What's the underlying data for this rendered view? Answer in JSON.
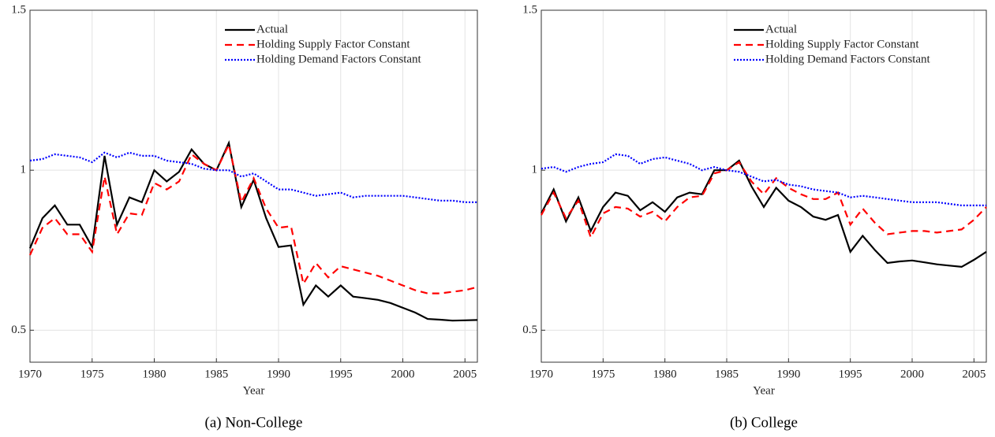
{
  "chart_data": [
    {
      "type": "line",
      "caption": "(a) Non-College",
      "x_label": "Year",
      "x": [
        1970,
        1971,
        1972,
        1973,
        1974,
        1975,
        1976,
        1977,
        1978,
        1979,
        1980,
        1981,
        1982,
        1983,
        1984,
        1985,
        1986,
        1987,
        1988,
        1989,
        1990,
        1991,
        1992,
        1993,
        1994,
        1995,
        1996,
        1997,
        1998,
        1999,
        2000,
        2001,
        2002,
        2003,
        2004,
        2005,
        2006
      ],
      "xlim": [
        1970,
        2006
      ],
      "xticks": [
        1970,
        1975,
        1980,
        1985,
        1990,
        1995,
        2000,
        2005
      ],
      "ylim": [
        0.4,
        1.5
      ],
      "yticks": [
        0.5,
        1,
        1.5
      ],
      "grid": true,
      "legend": "top-right",
      "series": [
        {
          "name": "Actual",
          "color": "#000000",
          "dash": "solid",
          "values": [
            0.756,
            0.85,
            0.89,
            0.83,
            0.83,
            0.76,
            1.045,
            0.83,
            0.915,
            0.9,
            1.0,
            0.965,
            0.995,
            1.065,
            1.02,
            1.0,
            1.085,
            0.885,
            0.97,
            0.85,
            0.76,
            0.765,
            0.58,
            0.64,
            0.605,
            0.64,
            0.605,
            0.6,
            0.595,
            0.585,
            0.57,
            0.555,
            0.535,
            0.533,
            0.53,
            0.531,
            0.532
          ]
        },
        {
          "name": "Holding Supply Factor Constant",
          "color": "#ff0000",
          "dash": "dashed",
          "values": [
            0.735,
            0.82,
            0.85,
            0.8,
            0.8,
            0.745,
            0.98,
            0.8,
            0.865,
            0.86,
            0.96,
            0.94,
            0.965,
            1.05,
            1.02,
            1.0,
            1.08,
            0.9,
            0.975,
            0.88,
            0.82,
            0.825,
            0.645,
            0.71,
            0.665,
            0.7,
            0.69,
            0.68,
            0.67,
            0.655,
            0.64,
            0.625,
            0.615,
            0.615,
            0.62,
            0.625,
            0.635
          ]
        },
        {
          "name": "Holding Demand Factors Constant",
          "color": "#0000ff",
          "dash": "dotted",
          "values": [
            1.03,
            1.035,
            1.05,
            1.045,
            1.04,
            1.025,
            1.055,
            1.04,
            1.055,
            1.045,
            1.045,
            1.03,
            1.025,
            1.02,
            1.005,
            1.0,
            1.0,
            0.98,
            0.99,
            0.965,
            0.94,
            0.94,
            0.93,
            0.92,
            0.925,
            0.93,
            0.915,
            0.92,
            0.92,
            0.92,
            0.92,
            0.915,
            0.91,
            0.905,
            0.905,
            0.9,
            0.9
          ]
        }
      ]
    },
    {
      "type": "line",
      "caption": "(b) College",
      "x_label": "Year",
      "x": [
        1970,
        1971,
        1972,
        1973,
        1974,
        1975,
        1976,
        1977,
        1978,
        1979,
        1980,
        1981,
        1982,
        1983,
        1984,
        1985,
        1986,
        1987,
        1988,
        1989,
        1990,
        1991,
        1992,
        1993,
        1994,
        1995,
        1996,
        1997,
        1998,
        1999,
        2000,
        2001,
        2002,
        2003,
        2004,
        2005,
        2006
      ],
      "xlim": [
        1970,
        2006
      ],
      "xticks": [
        1970,
        1975,
        1980,
        1985,
        1990,
        1995,
        2000,
        2005
      ],
      "ylim": [
        0.4,
        1.5
      ],
      "yticks": [
        0.5,
        1,
        1.5
      ],
      "grid": true,
      "legend": "top-right",
      "series": [
        {
          "name": "Actual",
          "color": "#000000",
          "dash": "solid",
          "values": [
            0.865,
            0.94,
            0.84,
            0.915,
            0.81,
            0.885,
            0.93,
            0.92,
            0.875,
            0.9,
            0.87,
            0.915,
            0.93,
            0.925,
            1.0,
            1.0,
            1.03,
            0.95,
            0.885,
            0.945,
            0.905,
            0.885,
            0.855,
            0.845,
            0.86,
            0.745,
            0.795,
            0.75,
            0.71,
            0.715,
            0.718,
            0.712,
            0.706,
            0.702,
            0.698,
            0.72,
            0.745
          ]
        },
        {
          "name": "Holding Supply Factor Constant",
          "color": "#ff0000",
          "dash": "dashed",
          "values": [
            0.86,
            0.93,
            0.85,
            0.905,
            0.79,
            0.865,
            0.885,
            0.88,
            0.855,
            0.87,
            0.84,
            0.885,
            0.915,
            0.92,
            0.99,
            1.0,
            1.025,
            0.965,
            0.925,
            0.975,
            0.945,
            0.925,
            0.91,
            0.91,
            0.93,
            0.83,
            0.88,
            0.835,
            0.8,
            0.805,
            0.81,
            0.81,
            0.805,
            0.81,
            0.815,
            0.845,
            0.885
          ]
        },
        {
          "name": "Holding Demand Factors Constant",
          "color": "#0000ff",
          "dash": "dotted",
          "values": [
            1.005,
            1.01,
            0.995,
            1.01,
            1.02,
            1.025,
            1.05,
            1.045,
            1.02,
            1.035,
            1.04,
            1.03,
            1.02,
            1.0,
            1.01,
            1.0,
            0.995,
            0.98,
            0.965,
            0.97,
            0.955,
            0.95,
            0.94,
            0.935,
            0.93,
            0.915,
            0.92,
            0.915,
            0.91,
            0.905,
            0.9,
            0.9,
            0.9,
            0.895,
            0.89,
            0.89,
            0.89
          ]
        }
      ]
    }
  ]
}
